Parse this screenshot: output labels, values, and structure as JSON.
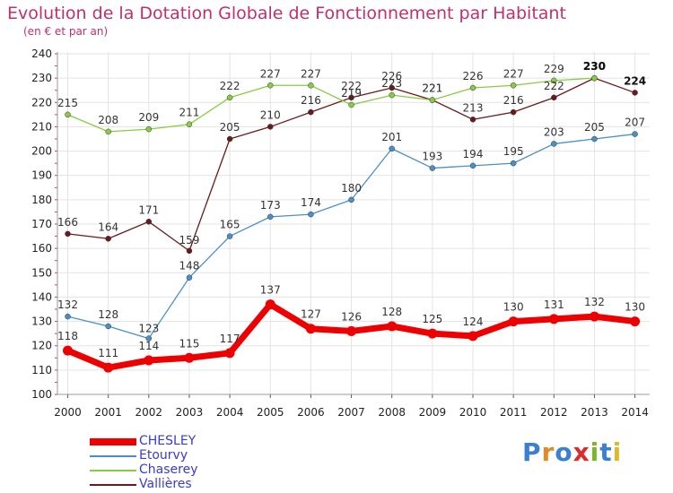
{
  "header": {
    "title": "Evolution de la Dotation Globale de Fonctionnement par Habitant",
    "subtitle": "(en € et par an)"
  },
  "brand": {
    "text": "Proxiti",
    "letters": [
      {
        "ch": "P",
        "color": "#3b7fd1"
      },
      {
        "ch": "r",
        "color": "#e08a2a"
      },
      {
        "ch": "o",
        "color": "#3b7fd1"
      },
      {
        "ch": "x",
        "color": "#e02a2a"
      },
      {
        "ch": "i",
        "color": "#7ab82a"
      },
      {
        "ch": "t",
        "color": "#3b7fd1"
      },
      {
        "ch": "i",
        "color": "#e0b82a"
      }
    ]
  },
  "chart_data": {
    "type": "line",
    "title": "Evolution de la Dotation Globale de Fonctionnement par Habitant",
    "subtitle": "(en € et par an)",
    "x": [
      "2000",
      "2001",
      "2002",
      "2003",
      "2004",
      "2005",
      "2006",
      "2007",
      "2008",
      "2009",
      "2010",
      "2011",
      "2012",
      "2013",
      "2014"
    ],
    "ylim": [
      100,
      240
    ],
    "yticks": [
      100,
      110,
      120,
      130,
      140,
      150,
      160,
      170,
      180,
      190,
      200,
      210,
      220,
      230,
      240
    ],
    "grid": true,
    "legend_position": "bottom-left",
    "series": [
      {
        "name": "CHESLEY",
        "color": "#ee0000",
        "width": 7,
        "values": [
          118,
          111,
          114,
          115,
          117,
          137,
          127,
          126,
          128,
          125,
          124,
          130,
          131,
          132,
          130
        ]
      },
      {
        "name": "Etourvy",
        "color": "#4a90c8",
        "width": 1.3,
        "values": [
          132,
          128,
          123,
          148,
          165,
          173,
          174,
          180,
          201,
          193,
          194,
          195,
          203,
          205,
          207
        ]
      },
      {
        "name": "Chaserey",
        "color": "#88cc44",
        "width": 1.3,
        "values": [
          215,
          208,
          209,
          211,
          222,
          227,
          227,
          219,
          223,
          221,
          226,
          227,
          229,
          230,
          null
        ]
      },
      {
        "name": "Vallières",
        "color": "#6a1a1a",
        "width": 1.3,
        "values": [
          166,
          164,
          171,
          159,
          205,
          210,
          216,
          222,
          226,
          221,
          213,
          216,
          222,
          230,
          224
        ]
      }
    ],
    "labels_shown": [
      [
        "118",
        "111",
        "114",
        "115",
        "117",
        "137",
        "127",
        "126",
        "128",
        "125",
        "124",
        "130",
        "131",
        "132",
        "130"
      ],
      [
        "132",
        "128",
        "123",
        "148",
        "165",
        "173",
        "174",
        "180",
        "201",
        "193",
        "194",
        "195",
        "203",
        "205",
        "207"
      ],
      [
        "215",
        "208",
        "209",
        "211",
        "222",
        "227",
        "227",
        "219",
        "223",
        "221",
        "226",
        "227",
        "229",
        "230",
        ""
      ],
      [
        "166",
        "164",
        "171",
        "159",
        "205",
        "210",
        "216",
        "222",
        "226",
        "221",
        "213",
        "216",
        "222",
        "230",
        "224"
      ]
    ]
  }
}
